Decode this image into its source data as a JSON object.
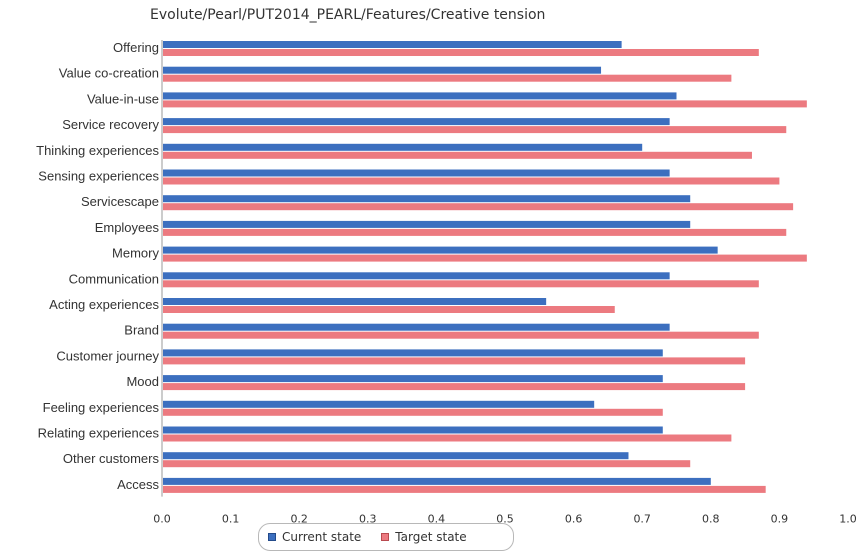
{
  "title": "Evolute/Pearl/PUT2014_PEARL/Features/Creative tension",
  "chart_data": {
    "type": "bar",
    "orientation": "horizontal",
    "title": "Evolute/Pearl/PUT2014_PEARL/Features/Creative tension",
    "categories": [
      "Offering",
      "Value co-creation",
      "Value-in-use",
      "Service recovery",
      "Thinking experiences",
      "Sensing experiences",
      "Servicescape",
      "Employees",
      "Memory",
      "Communication",
      "Acting experiences",
      "Brand",
      "Customer journey",
      "Mood",
      "Feeling experiences",
      "Relating experiences",
      "Other customers",
      "Access"
    ],
    "series": [
      {
        "name": "Current state",
        "color": "#3c6fbf",
        "values": [
          0.67,
          0.64,
          0.75,
          0.74,
          0.7,
          0.74,
          0.77,
          0.77,
          0.81,
          0.74,
          0.56,
          0.74,
          0.73,
          0.73,
          0.63,
          0.73,
          0.68,
          0.8
        ]
      },
      {
        "name": "Target state",
        "color": "#ec7a80",
        "values": [
          0.87,
          0.83,
          0.94,
          0.91,
          0.86,
          0.9,
          0.92,
          0.91,
          0.94,
          0.87,
          0.66,
          0.87,
          0.85,
          0.85,
          0.73,
          0.83,
          0.77,
          0.88
        ]
      }
    ],
    "xticks": [
      "0.0",
      "0.1",
      "0.2",
      "0.3",
      "0.4",
      "0.5",
      "0.6",
      "0.7",
      "0.8",
      "0.9",
      "1.0"
    ],
    "xlim": [
      0,
      1.0
    ],
    "grid": false,
    "legend_position": "bottom"
  }
}
